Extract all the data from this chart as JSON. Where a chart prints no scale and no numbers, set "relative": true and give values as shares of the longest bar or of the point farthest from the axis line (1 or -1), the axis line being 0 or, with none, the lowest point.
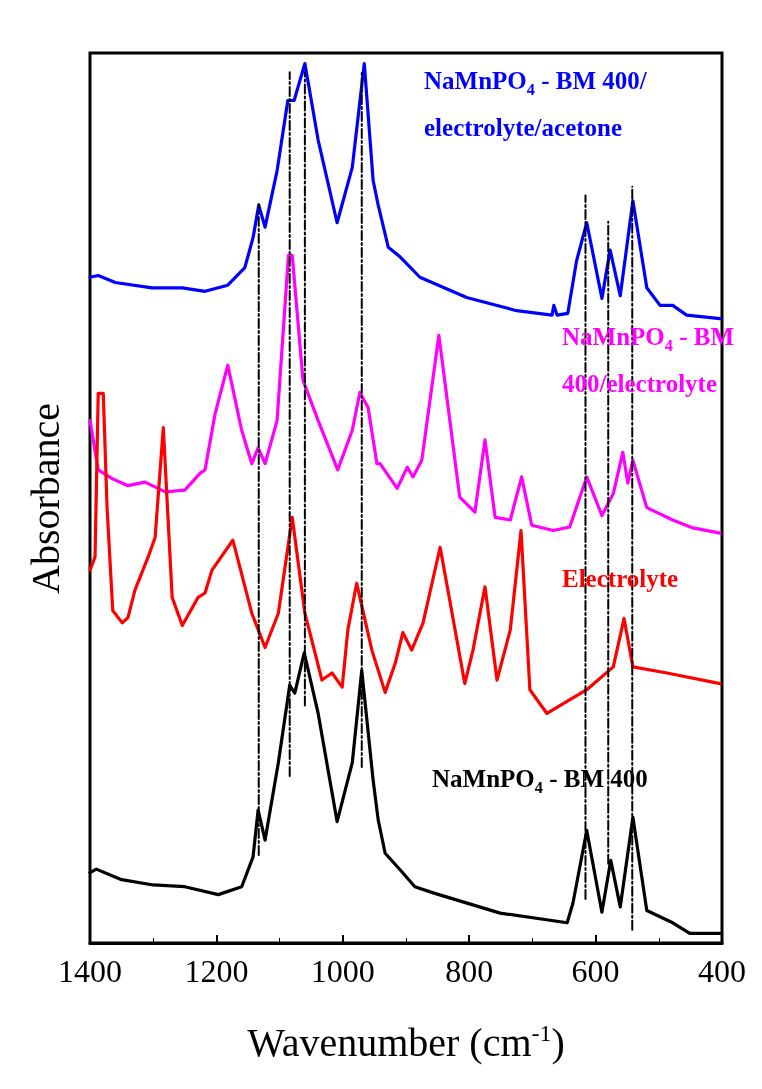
{
  "chart_data": {
    "type": "line",
    "relative": true,
    "xlabel": "Wavenumber (cm$^{-1}$)",
    "ylabel": "Absorbance",
    "xlim": [
      1400,
      400
    ],
    "xticks": [
      1400,
      1200,
      1000,
      800,
      600,
      400
    ],
    "marker": "none",
    "grid": false,
    "series": [
      {
        "name": "NaMnPO$_{4}$ - BM 400/electrolyte/acetone",
        "color": "#0000ff",
        "x": [
          1400,
          1387,
          1360,
          1302,
          1254,
          1218,
          1182,
          1155,
          1142,
          1133,
          1123,
          1104,
          1087,
          1077,
          1060,
          1039,
          1009,
          985,
          966,
          952,
          944,
          928,
          909,
          878,
          804,
          725,
          669,
          666,
          661,
          644,
          630,
          614,
          590,
          577,
          561,
          541,
          519,
          498,
          478,
          456,
          403
        ],
        "values": [
          0.757,
          0.759,
          0.751,
          0.745,
          0.745,
          0.741,
          0.748,
          0.768,
          0.802,
          0.839,
          0.814,
          0.878,
          0.958,
          0.958,
          1.0,
          0.913,
          0.819,
          0.882,
          1.0,
          0.867,
          0.839,
          0.791,
          0.78,
          0.757,
          0.734,
          0.719,
          0.714,
          0.725,
          0.714,
          0.716,
          0.776,
          0.819,
          0.733,
          0.788,
          0.736,
          0.844,
          0.745,
          0.725,
          0.725,
          0.714,
          0.71
        ]
      },
      {
        "name": "NaMnPO$_{4}$ - BM 400/electrolyte",
        "color": "#ff00ff",
        "x": [
          1400,
          1387,
          1365,
          1340,
          1313,
          1281,
          1250,
          1226,
          1218,
          1202,
          1182,
          1160,
          1144,
          1134,
          1123,
          1104,
          1086,
          1080,
          1063,
          1039,
          1008,
          985,
          973,
          960,
          946,
          941,
          914,
          898,
          889,
          875,
          848,
          815,
          791,
          775,
          759,
          735,
          717,
          701,
          667,
          641,
          614,
          590,
          572,
          557,
          549,
          541,
          519,
          478,
          446,
          403
        ],
        "values": [
          0.594,
          0.538,
          0.528,
          0.52,
          0.524,
          0.513,
          0.515,
          0.534,
          0.538,
          0.602,
          0.657,
          0.583,
          0.545,
          0.563,
          0.545,
          0.594,
          0.782,
          0.782,
          0.64,
          0.594,
          0.538,
          0.583,
          0.626,
          0.609,
          0.545,
          0.545,
          0.517,
          0.541,
          0.53,
          0.549,
          0.691,
          0.507,
          0.49,
          0.572,
          0.484,
          0.481,
          0.53,
          0.475,
          0.469,
          0.473,
          0.53,
          0.486,
          0.511,
          0.558,
          0.523,
          0.549,
          0.495,
          0.481,
          0.472,
          0.466
        ]
      },
      {
        "name": "Electrolyte",
        "color": "#ff0000",
        "x": [
          1400,
          1392,
          1387,
          1379,
          1373,
          1364,
          1349,
          1340,
          1329,
          1308,
          1297,
          1284,
          1270,
          1254,
          1229,
          1218,
          1207,
          1174,
          1144,
          1123,
          1102,
          1080,
          1060,
          1033,
          1017,
          1001,
          992,
          978,
          954,
          933,
          917,
          905,
          891,
          873,
          846,
          807,
          794,
          775,
          756,
          735,
          718,
          704,
          677,
          614,
          572,
          555,
          541,
          487,
          403
        ],
        "values": [
          0.424,
          0.439,
          0.625,
          0.625,
          0.495,
          0.378,
          0.364,
          0.37,
          0.401,
          0.439,
          0.461,
          0.586,
          0.393,
          0.361,
          0.393,
          0.398,
          0.424,
          0.458,
          0.375,
          0.336,
          0.375,
          0.484,
          0.375,
          0.299,
          0.307,
          0.291,
          0.356,
          0.409,
          0.333,
          0.285,
          0.318,
          0.353,
          0.333,
          0.364,
          0.45,
          0.295,
          0.333,
          0.405,
          0.299,
          0.356,
          0.469,
          0.288,
          0.261,
          0.288,
          0.314,
          0.369,
          0.314,
          0.307,
          0.295
        ]
      },
      {
        "name": "NaMnPO$_{4}$ - BM 400",
        "color": "#000000",
        "x": [
          1400,
          1390,
          1350,
          1300,
          1250,
          1197,
          1160,
          1142,
          1134,
          1123,
          1102,
          1084,
          1076,
          1061,
          1039,
          1009,
          985,
          970,
          952,
          944,
          933,
          909,
          886,
          857,
          751,
          645,
          636,
          614,
          590,
          576,
          561,
          541,
          519,
          478,
          451,
          403
        ],
        "values": [
          0.08,
          0.084,
          0.072,
          0.066,
          0.064,
          0.055,
          0.064,
          0.098,
          0.151,
          0.117,
          0.205,
          0.293,
          0.284,
          0.33,
          0.261,
          0.138,
          0.205,
          0.31,
          0.185,
          0.14,
          0.102,
          0.083,
          0.064,
          0.057,
          0.034,
          0.023,
          0.045,
          0.128,
          0.035,
          0.094,
          0.041,
          0.143,
          0.037,
          0.023,
          0.011,
          0.011
        ]
      },
      {
        "color": "#000000",
        "line_style": "dashed",
        "x": [
          1133,
          1133
        ],
        "values": [
          0.1,
          0.84
        ]
      },
      {
        "color": "#000000",
        "line_style": "dashed",
        "x": [
          1084,
          1084
        ],
        "values": [
          0.19,
          0.99
        ]
      },
      {
        "color": "#000000",
        "line_style": "dashed",
        "x": [
          1060,
          1060
        ],
        "values": [
          0.27,
          0.99
        ]
      },
      {
        "color": "#000000",
        "line_style": "dashed",
        "x": [
          970,
          970
        ],
        "values": [
          0.2,
          0.99
        ]
      },
      {
        "color": "#000000",
        "line_style": "dashed",
        "x": [
          616,
          616
        ],
        "values": [
          0.05,
          0.85
        ]
      },
      {
        "color": "#000000",
        "line_style": "dashed",
        "x": [
          580,
          580
        ],
        "values": [
          0.09,
          0.82
        ]
      },
      {
        "color": "#000000",
        "line_style": "dashed",
        "x": [
          542,
          542
        ],
        "values": [
          0.015,
          0.86
        ]
      }
    ]
  }
}
